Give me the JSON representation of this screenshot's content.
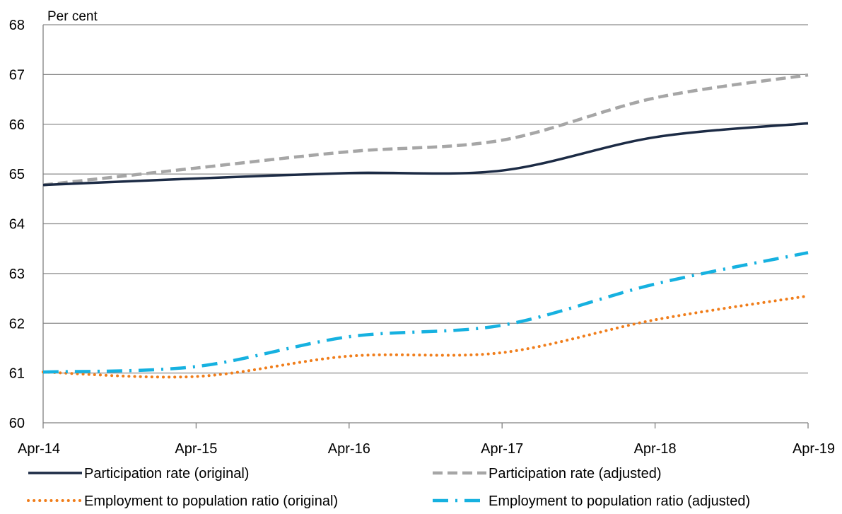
{
  "chart_data": {
    "type": "line",
    "title": "",
    "ylabel": "Per cent",
    "xlabel": "",
    "x": [
      "Apr-14",
      "Apr-15",
      "Apr-16",
      "Apr-17",
      "Apr-18",
      "Apr-19"
    ],
    "ylim": [
      60,
      68
    ],
    "yticks": [
      "60",
      "61",
      "62",
      "63",
      "64",
      "65",
      "66",
      "67",
      "68"
    ],
    "grid": true,
    "legend_position": "bottom",
    "series": [
      {
        "name": "Participation rate (original)",
        "color": "#1c2b45",
        "style": "solid",
        "values": [
          64.78,
          64.91,
          65.02,
          65.07,
          65.74,
          66.02
        ]
      },
      {
        "name": "Participation rate (adjusted)",
        "color": "#a6a6a6",
        "style": "dashed",
        "values": [
          64.78,
          65.12,
          65.45,
          65.68,
          66.53,
          66.99
        ]
      },
      {
        "name": "Employment to population ratio (original)",
        "color": "#f07d1a",
        "style": "dotted",
        "values": [
          61.02,
          60.93,
          61.34,
          61.41,
          62.07,
          62.55
        ]
      },
      {
        "name": "Employment to population ratio (adjusted)",
        "color": "#16b1e0",
        "style": "dash-dot",
        "values": [
          61.02,
          61.13,
          61.73,
          61.96,
          62.79,
          63.42
        ]
      }
    ]
  }
}
